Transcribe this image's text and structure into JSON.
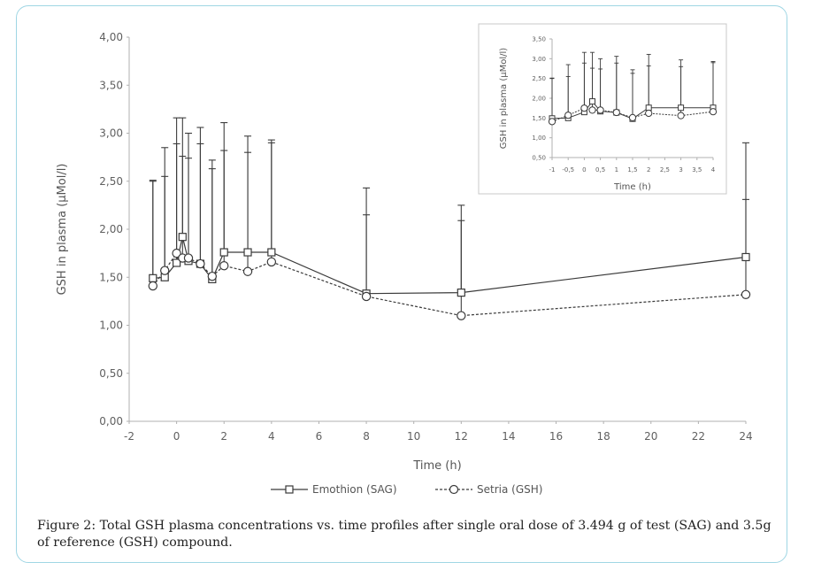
{
  "figure": {
    "caption": "Figure 2: Total GSH plasma concentrations vs. time profiles after single oral dose of 3.494 g of test (SAG) and 3.5g of reference (GSH) compound."
  },
  "chart_data": [
    {
      "type": "line",
      "id": "main",
      "xlabel": "Time (h)",
      "ylabel": "GSH in plasma  (µMol/l)",
      "xlim": [
        -2,
        24
      ],
      "ylim": [
        0,
        4
      ],
      "xticks": [
        -2,
        0,
        2,
        4,
        6,
        8,
        10,
        12,
        14,
        16,
        18,
        20,
        22,
        24
      ],
      "xtick_labels": [
        "-2",
        "0",
        "2",
        "4",
        "6",
        "8",
        "10",
        "12",
        "14",
        "16",
        "18",
        "20",
        "22",
        "24"
      ],
      "yticks": [
        0,
        0.5,
        1,
        1.5,
        2,
        2.5,
        3,
        3.5,
        4
      ],
      "ytick_labels": [
        "0,00",
        "0,50",
        "1,00",
        "1,50",
        "2,00",
        "2,50",
        "3,00",
        "3,50",
        "4,00"
      ],
      "grid": false,
      "legend_position": "bottom",
      "x": [
        -1,
        -0.5,
        0,
        0.25,
        0.5,
        1,
        1.5,
        2,
        3,
        4,
        8,
        12,
        24
      ],
      "series": [
        {
          "name": "Emothion (SAG)",
          "marker": "square",
          "line_style": "solid",
          "values": [
            1.49,
            1.5,
            1.65,
            1.92,
            1.67,
            1.64,
            1.48,
            1.76,
            1.76,
            1.76,
            1.33,
            1.34,
            1.71
          ],
          "error_upper": [
            2.5,
            2.85,
            3.16,
            3.16,
            3.0,
            3.06,
            2.72,
            3.11,
            2.97,
            2.93,
            2.43,
            2.25,
            2.9
          ]
        },
        {
          "name": "Setria (GSH)",
          "marker": "circle",
          "line_style": "dashed",
          "values": [
            1.41,
            1.57,
            1.75,
            1.7,
            1.7,
            1.64,
            1.51,
            1.62,
            1.56,
            1.66,
            1.3,
            1.1,
            1.32
          ],
          "error_upper": [
            2.51,
            2.55,
            2.89,
            2.76,
            2.74,
            2.89,
            2.63,
            2.82,
            2.8,
            2.9,
            2.15,
            2.09,
            2.31
          ]
        }
      ]
    },
    {
      "type": "line",
      "id": "inset",
      "xlabel": "Time (h)",
      "ylabel": "GSH in plasma (µMol/l)",
      "xlim": [
        -1,
        4
      ],
      "ylim": [
        0.5,
        3.5
      ],
      "xticks": [
        -1,
        -0.5,
        0,
        0.5,
        1,
        1.5,
        2,
        2.5,
        3,
        3.5,
        4
      ],
      "xtick_labels": [
        "-1",
        "-0,5",
        "0",
        "0,5",
        "1",
        "1,5",
        "2",
        "2,5",
        "3",
        "3,5",
        "4"
      ],
      "yticks": [
        0.5,
        1,
        1.5,
        2,
        2.5,
        3,
        3.5
      ],
      "ytick_labels": [
        "0,50",
        "1,00",
        "1,50",
        "2,00",
        "2,50",
        "3,00",
        "3,50"
      ],
      "grid": false,
      "x": [
        -1,
        -0.5,
        0,
        0.25,
        0.5,
        1,
        1.5,
        2,
        3,
        4
      ],
      "series": [
        {
          "name": "Emothion (SAG)",
          "marker": "square",
          "line_style": "solid",
          "values": [
            1.49,
            1.5,
            1.65,
            1.92,
            1.67,
            1.64,
            1.48,
            1.76,
            1.76,
            1.76
          ],
          "error_upper": [
            2.5,
            2.85,
            3.16,
            3.16,
            3.0,
            3.06,
            2.72,
            3.11,
            2.97,
            2.93
          ]
        },
        {
          "name": "Setria (GSH)",
          "marker": "circle",
          "line_style": "dashed",
          "values": [
            1.41,
            1.57,
            1.75,
            1.7,
            1.7,
            1.64,
            1.51,
            1.62,
            1.56,
            1.66
          ],
          "error_upper": [
            2.51,
            2.55,
            2.89,
            2.76,
            2.74,
            2.89,
            2.63,
            2.82,
            2.8,
            2.9
          ]
        }
      ]
    }
  ],
  "colors": {
    "frame_border": "#9fd6e4",
    "axis": "#b0b0b0",
    "series_line": "#3a3a3a",
    "tick_text": "#606060"
  }
}
